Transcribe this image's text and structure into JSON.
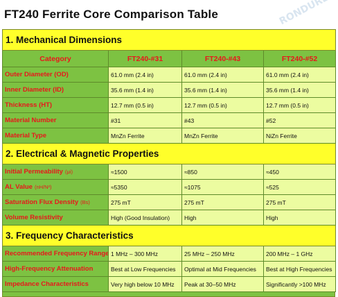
{
  "title": "FT240 Ferrite Core Comparison Table",
  "watermark": "RONDURE",
  "colors": {
    "section": "#ffff2a",
    "label_bg": "#7dc242",
    "label_text": "#e8171b",
    "cell_bg": "#ecfca0"
  },
  "sections": {
    "mechanical": {
      "heading": "1. Mechanical Dimensions"
    },
    "electrical": {
      "heading": "2. Electrical & Magnetic Properties"
    },
    "frequency": {
      "heading": "3. Frequency Characteristics"
    }
  },
  "header": {
    "category": "Category",
    "col1": "FT240-#31",
    "col2": "FT240-#43",
    "col3": "FT240-#52"
  },
  "mechanical_rows": [
    {
      "label": "Outer Diameter (OD)",
      "v1": "61.0 mm (2.4 in)",
      "v2": "61.0 mm (2.4 in)",
      "v3": "61.0 mm (2.4 in)"
    },
    {
      "label": "Inner Diameter (ID)",
      "v1": "35.6 mm (1.4 in)",
      "v2": "35.6 mm (1.4 in)",
      "v3": "35.6 mm (1.4 in)"
    },
    {
      "label": "Thickness (HT)",
      "v1": "12.7 mm (0.5 in)",
      "v2": "12.7 mm (0.5 in)",
      "v3": "12.7 mm (0.5 in)"
    },
    {
      "label": "Material Number",
      "v1": "#31",
      "v2": "#43",
      "v3": "#52"
    },
    {
      "label": "Material Type",
      "v1": "MnZn Ferrite",
      "v2": "MnZn Ferrite",
      "v3": "NiZn Ferrite"
    }
  ],
  "electrical_rows": [
    {
      "label": "Initial Permeability",
      "unit": "(μi)",
      "v1": "≈1500",
      "v2": "≈850",
      "v3": "≈450"
    },
    {
      "label": "AL Value",
      "unit": "(nH/N²)",
      "v1": "≈5350",
      "v2": "≈1075",
      "v3": "≈525"
    },
    {
      "label": "Saturation Flux Density",
      "unit": "(Bs)",
      "v1": "275 mT",
      "v2": "275 mT",
      "v3": "275 mT"
    },
    {
      "label": "Volume Resistivity",
      "unit": "",
      "v1": "High (Good Insulation)",
      "v2": "High",
      "v3": "High"
    }
  ],
  "frequency_rows": [
    {
      "label": "Recommended Frequency Range",
      "v1": "1 MHz – 300 MHz",
      "v2": "25 MHz – 250 MHz",
      "v3": "200 MHz – 1 GHz"
    },
    {
      "label": "High-Frequency Attenuation",
      "v1": "Best at Low Frequencies",
      "v2": "Optimal at Mid Frequencies",
      "v3": "Best at High Frequencies"
    },
    {
      "label": "Impedance Characteristics",
      "v1": "Very high below 10 MHz",
      "v2": "Peak at 30–50 MHz",
      "v3": "Significantly >100 MHz"
    }
  ]
}
